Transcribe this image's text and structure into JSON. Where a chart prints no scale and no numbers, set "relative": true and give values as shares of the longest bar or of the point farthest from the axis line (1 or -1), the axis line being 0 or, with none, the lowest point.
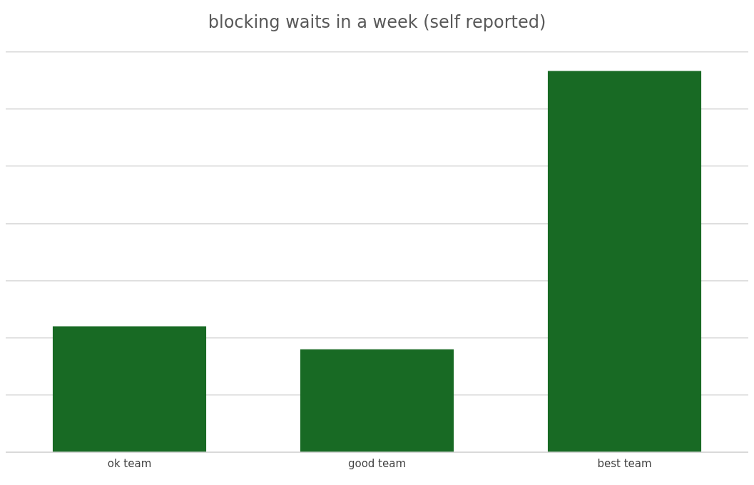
{
  "chart_data": {
    "type": "bar",
    "title": "blocking waits in a week (self reported)",
    "categories": [
      "ok team",
      "good team",
      "best team"
    ],
    "values": [
      0.33,
      0.27,
      1
    ],
    "color": "#186a24",
    "relative": true,
    "grid": "y",
    "legend": false
  }
}
